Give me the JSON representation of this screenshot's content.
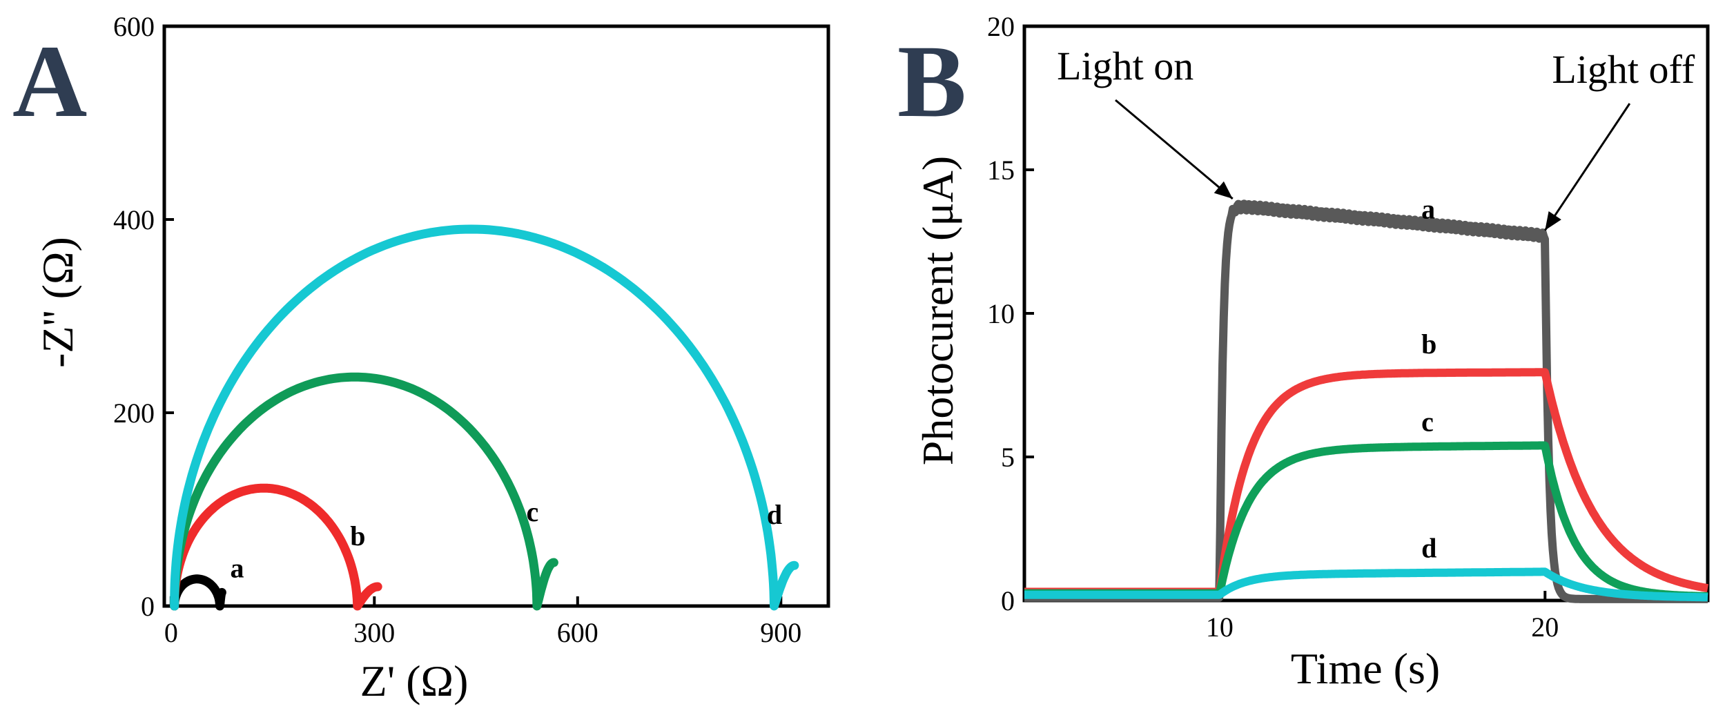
{
  "chart_data": [
    {
      "panel": "A",
      "type": "line",
      "xlabel": "Z' (Ω)",
      "ylabel": "-Z'' (Ω)",
      "xlim": [
        -10,
        970
      ],
      "ylim": [
        0,
        600
      ],
      "xticks": [
        0,
        300,
        600,
        900
      ],
      "yticks": [
        0,
        200,
        400,
        600
      ],
      "xtick_labels": [
        "0",
        "300",
        "600",
        "900"
      ],
      "ytick_labels": [
        "0",
        "200",
        "400",
        "600"
      ],
      "series": [
        {
          "name": "a",
          "color": "#000000",
          "x_start": 5,
          "x_end": 72,
          "peak_x": 38,
          "peak_y": 28,
          "tail_to": [
            75,
            14
          ]
        },
        {
          "name": "b",
          "color": "#ef2b2b",
          "x_start": 5,
          "x_end": 275,
          "peak_x": 135,
          "peak_y": 122,
          "tail_to": [
            305,
            20
          ]
        },
        {
          "name": "c",
          "color": "#0f9b58",
          "x_start": 5,
          "x_end": 540,
          "peak_x": 270,
          "peak_y": 237,
          "tail_to": [
            565,
            45
          ]
        },
        {
          "name": "d",
          "color": "#16c8d2",
          "x_start": 5,
          "x_end": 890,
          "peak_x": 440,
          "peak_y": 390,
          "tail_to": [
            920,
            42
          ]
        }
      ]
    },
    {
      "panel": "B",
      "type": "line",
      "xlabel": "Time (s)",
      "ylabel": "Photocurent (μA)",
      "xlim": [
        4,
        25
      ],
      "ylim": [
        0,
        20
      ],
      "xticks": [
        10,
        20
      ],
      "yticks": [
        0,
        5,
        10,
        15,
        20
      ],
      "xtick_labels": [
        "10",
        "20"
      ],
      "ytick_labels": [
        "0",
        "5",
        "10",
        "15",
        "20"
      ],
      "light_on_s": 10,
      "light_off_s": 20,
      "annotations": [
        {
          "text": "Light on",
          "points_to": [
            10.4,
            13.8
          ]
        },
        {
          "text": "Light off",
          "points_to": [
            20.0,
            12.7
          ]
        }
      ],
      "series": [
        {
          "name": "a",
          "color": "#595959",
          "baseline": 0.1,
          "peak": 13.8,
          "plateau_end": 12.7,
          "rise_tau": 0.1,
          "decay_tau": 0.12
        },
        {
          "name": "b",
          "color": "#ef3b3b",
          "baseline": 0.3,
          "peak": 7.9,
          "plateau_end": 7.95,
          "rise_tau": 0.9,
          "decay_tau": 1.5
        },
        {
          "name": "c",
          "color": "#0fa05a",
          "baseline": 0.25,
          "peak": 5.3,
          "plateau_end": 5.4,
          "rise_tau": 0.9,
          "decay_tau": 0.9
        },
        {
          "name": "d",
          "color": "#16c8d2",
          "baseline": 0.2,
          "peak": 0.9,
          "plateau_end": 1.0,
          "rise_tau": 0.8,
          "decay_tau": 1.2
        }
      ]
    }
  ],
  "panels": {
    "A": {
      "letter": "A"
    },
    "B": {
      "letter": "B"
    }
  }
}
